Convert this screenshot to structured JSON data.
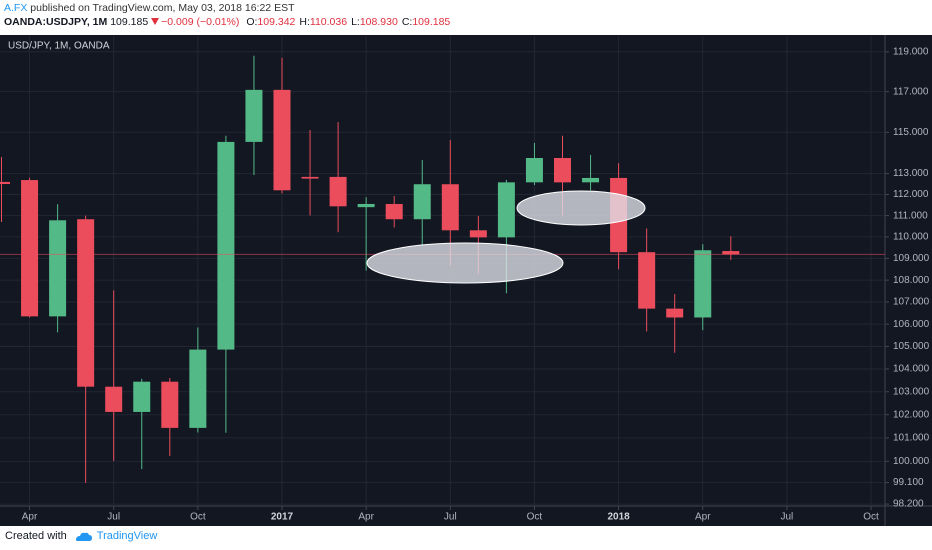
{
  "header": {
    "author": "A.FX",
    "published": "published on TradingView.com, May 03, 2018 16:22 EST",
    "symbol": "OANDA:USDJPY, 1M",
    "last": "109.185",
    "change": "−0.009 (−0.01%)",
    "ohlc": [
      {
        "label": "O:",
        "value": "109.342"
      },
      {
        "label": "H:",
        "value": "110.036"
      },
      {
        "label": "L:",
        "value": "108.930"
      },
      {
        "label": "C:",
        "value": "109.185"
      }
    ]
  },
  "footer": {
    "created": "Created with",
    "brand": "TradingView"
  },
  "chart_data": {
    "type": "candlestick",
    "title": "USD/JPY, 1M, OANDA",
    "x": [
      "2016-03",
      "2016-04",
      "2016-05",
      "2016-06",
      "2016-07",
      "2016-08",
      "2016-09",
      "2016-10",
      "2016-11",
      "2016-12",
      "2017-01",
      "2017-02",
      "2017-03",
      "2017-04",
      "2017-05",
      "2017-06",
      "2017-07",
      "2017-08",
      "2017-09",
      "2017-10",
      "2017-11",
      "2017-12",
      "2018-01",
      "2018-02",
      "2018-03",
      "2018-04",
      "2018-05"
    ],
    "open": [
      112.6,
      112.69,
      106.35,
      110.83,
      103.22,
      102.12,
      103.44,
      101.43,
      104.86,
      114.53,
      117.09,
      112.84,
      112.84,
      111.4,
      111.55,
      110.83,
      112.49,
      110.31,
      109.98,
      112.58,
      113.75,
      112.58,
      112.79,
      109.29,
      106.7,
      106.3,
      109.342
    ],
    "high": [
      113.8,
      112.8,
      111.54,
      111.0,
      107.53,
      103.57,
      103.6,
      105.85,
      114.83,
      118.8,
      118.7,
      115.11,
      115.5,
      111.87,
      111.93,
      113.65,
      114.62,
      110.98,
      112.7,
      114.48,
      114.83,
      113.9,
      113.5,
      110.4,
      107.36,
      109.66,
      110.036
    ],
    "low": [
      110.7,
      106.3,
      105.63,
      99.09,
      100.02,
      99.67,
      100.23,
      101.23,
      101.22,
      112.93,
      112.05,
      111.01,
      110.22,
      108.44,
      110.44,
      109.61,
      108.68,
      108.29,
      107.4,
      112.45,
      111.01,
      112.2,
      108.5,
      105.67,
      104.72,
      105.73,
      108.93
    ],
    "close": [
      112.5,
      106.35,
      110.78,
      103.22,
      102.12,
      103.44,
      101.43,
      104.86,
      114.53,
      117.09,
      112.2,
      112.76,
      111.44,
      111.55,
      110.83,
      112.49,
      110.31,
      109.98,
      112.58,
      113.75,
      112.58,
      112.79,
      109.29,
      106.7,
      106.3,
      109.38,
      109.185
    ],
    "up_color": "#53b987",
    "down_color": "#eb4d5c",
    "log_scale": true,
    "grid": true,
    "ylim": [
      98.12,
      119.8
    ],
    "yticks": [
      {
        "value": 98.2,
        "label": "98.200"
      },
      {
        "value": 99.1,
        "label": "99.100"
      },
      {
        "value": 100,
        "label": "100.000"
      },
      {
        "value": 101,
        "label": "101.000"
      },
      {
        "value": 102,
        "label": "102.000"
      },
      {
        "value": 103,
        "label": "103.000"
      },
      {
        "value": 104,
        "label": "104.000"
      },
      {
        "value": 105,
        "label": "105.000"
      },
      {
        "value": 106,
        "label": "106.000"
      },
      {
        "value": 107,
        "label": "107.000"
      },
      {
        "value": 108,
        "label": "108.000"
      },
      {
        "value": 109,
        "label": "109.000"
      },
      {
        "value": 110,
        "label": "110.000"
      },
      {
        "value": 111,
        "label": "111.000"
      },
      {
        "value": 112,
        "label": "112.000"
      },
      {
        "value": 113,
        "label": "113.000"
      },
      {
        "value": 115,
        "label": "115.000"
      },
      {
        "value": 117,
        "label": "117.000"
      },
      {
        "value": 119,
        "label": "119.000"
      }
    ],
    "xticks": [
      {
        "value": "2016-04",
        "label": "Apr"
      },
      {
        "value": "2016-07",
        "label": "Jul"
      },
      {
        "value": "2016-10",
        "label": "Oct"
      },
      {
        "value": "2017-01",
        "label": "2017"
      },
      {
        "value": "2017-04",
        "label": "Apr"
      },
      {
        "value": "2017-07",
        "label": "Jul"
      },
      {
        "value": "2017-10",
        "label": "Oct"
      },
      {
        "value": "2018-01",
        "label": "2018"
      },
      {
        "value": "2018-04",
        "label": "Apr"
      },
      {
        "value": "2018-07",
        "label": "Jul"
      },
      {
        "value": "2018-10",
        "label": "Oct"
      }
    ]
  }
}
